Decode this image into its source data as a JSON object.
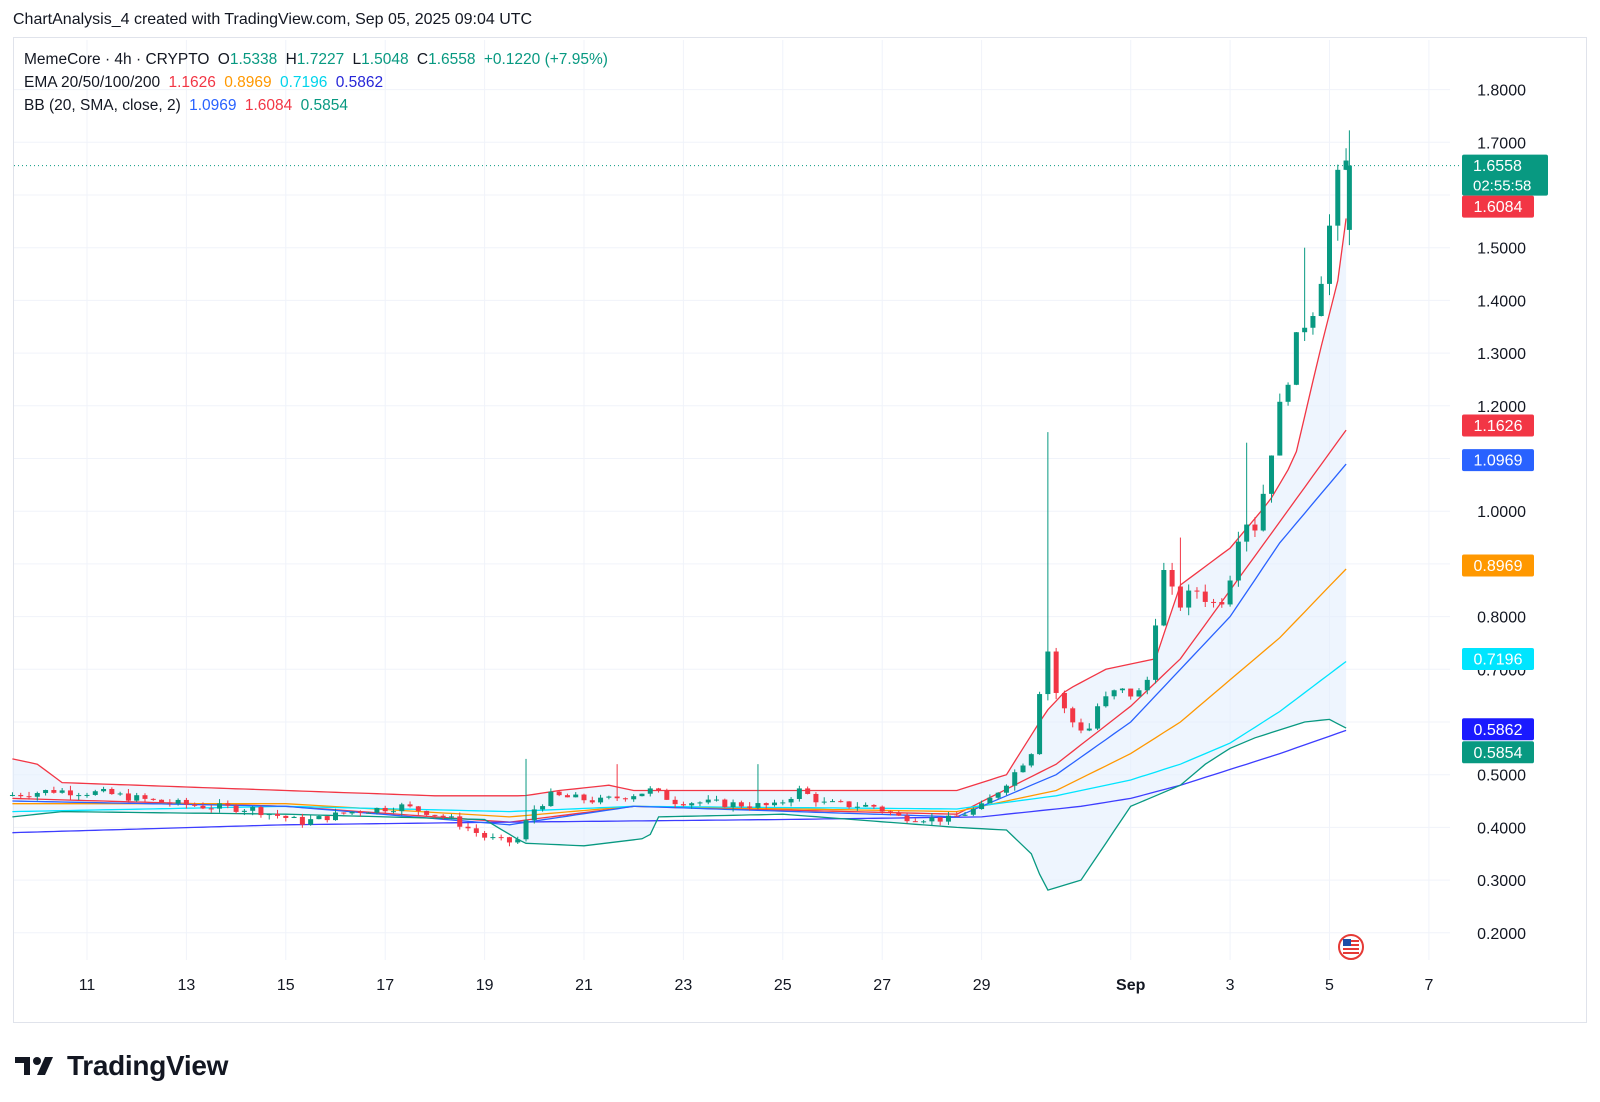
{
  "header": {
    "caption": "ChartAnalysis_4 created with TradingView.com, Sep 05, 2025 09:04 UTC"
  },
  "legend": {
    "symbol": "MemeCore · 4h · CRYPTO",
    "o_label": "O",
    "o_value": "1.5338",
    "h_label": "H",
    "h_value": "1.7227",
    "l_label": "L",
    "l_value": "1.5048",
    "c_label": "C",
    "c_value": "1.6558",
    "change": "+0.1220 (+7.95%)",
    "ema_label": "EMA 20/50/100/200",
    "ema_values": [
      "1.1626",
      "0.8969",
      "0.7196",
      "0.5862"
    ],
    "bb_label": "BB (20, SMA, close, 2)",
    "bb_values": [
      "1.0969",
      "1.6084",
      "0.5854"
    ]
  },
  "footer": {
    "brand": "TradingView"
  },
  "colors": {
    "up": "#089981",
    "down": "#f23645",
    "ema20": "#f23645",
    "ema50": "#ff9800",
    "ema100": "#00e5ff",
    "ema200": "#3d3dff",
    "bb_basis": "#2962ff",
    "bb_upper": "#f23645",
    "bb_lower": "#089981",
    "bb_fill": "#e3effd",
    "grid": "#f0f3fa"
  },
  "chart_data": {
    "type": "candlestick",
    "symbol": "MemeCore",
    "interval": "4h",
    "ylim": [
      0.15,
      1.85
    ],
    "y_ticks": [
      "0.2000",
      "0.3000",
      "0.4000",
      "0.5000",
      "0.7000",
      "0.8000",
      "1.0000",
      "1.2000",
      "1.3000",
      "1.4000",
      "1.5000",
      "1.7000",
      "1.8000"
    ],
    "x_ticks": [
      "11",
      "13",
      "15",
      "17",
      "19",
      "21",
      "23",
      "25",
      "27",
      "29",
      "Sep",
      "3",
      "5",
      "7"
    ],
    "x_tick_days": [
      11,
      13,
      15,
      17,
      19,
      21,
      23,
      25,
      27,
      29,
      32,
      34,
      36,
      38
    ],
    "x_range_days": [
      9.5,
      39.5
    ],
    "last_price": "1.6558",
    "countdown": "02:55:58",
    "price_labels": [
      {
        "text": "1.6084",
        "value": 1.6084,
        "color": "#f23645"
      },
      {
        "text": "1.1626",
        "value": 1.1626,
        "color": "#f23645"
      },
      {
        "text": "1.0969",
        "value": 1.0969,
        "color": "#2962ff"
      },
      {
        "text": "0.8969",
        "value": 0.8969,
        "color": "#ff9800"
      },
      {
        "text": "0.7196",
        "value": 0.7196,
        "color": "#00e5ff"
      },
      {
        "text": "0.5862",
        "value": 0.5862,
        "color": "#1a1aff"
      },
      {
        "text": "0.5854",
        "value": 0.5854,
        "color": "#089981"
      }
    ],
    "close_anchors": [
      [
        9.5,
        0.46
      ],
      [
        10.5,
        0.47
      ],
      [
        11.5,
        0.465
      ],
      [
        12.5,
        0.45
      ],
      [
        13.5,
        0.44
      ],
      [
        14.5,
        0.435
      ],
      [
        15.5,
        0.41
      ],
      [
        16.5,
        0.43
      ],
      [
        17.5,
        0.44
      ],
      [
        18.0,
        0.43
      ],
      [
        18.5,
        0.415
      ],
      [
        19.2,
        0.38
      ],
      [
        19.8,
        0.37
      ],
      [
        20.1,
        0.43
      ],
      [
        20.5,
        0.46
      ],
      [
        21.0,
        0.455
      ],
      [
        21.5,
        0.45
      ],
      [
        22.0,
        0.46
      ],
      [
        22.5,
        0.47
      ],
      [
        23.0,
        0.45
      ],
      [
        24.0,
        0.445
      ],
      [
        25.0,
        0.44
      ],
      [
        25.5,
        0.47
      ],
      [
        26.0,
        0.445
      ],
      [
        27.0,
        0.44
      ],
      [
        27.5,
        0.42
      ],
      [
        28.5,
        0.415
      ],
      [
        29.2,
        0.44
      ],
      [
        29.8,
        0.5
      ],
      [
        30.2,
        0.55
      ],
      [
        30.45,
        0.76
      ],
      [
        30.7,
        0.64
      ],
      [
        31.0,
        0.6
      ],
      [
        31.3,
        0.58
      ],
      [
        31.5,
        0.63
      ],
      [
        31.9,
        0.66
      ],
      [
        32.3,
        0.65
      ],
      [
        32.5,
        0.68
      ],
      [
        32.8,
        0.89
      ],
      [
        33.1,
        0.82
      ],
      [
        33.5,
        0.85
      ],
      [
        33.9,
        0.82
      ],
      [
        34.1,
        0.85
      ],
      [
        34.4,
        0.99
      ],
      [
        34.7,
        0.97
      ],
      [
        35.0,
        1.12
      ],
      [
        35.3,
        1.25
      ],
      [
        35.6,
        1.35
      ],
      [
        35.9,
        1.4
      ],
      [
        36.15,
        1.53
      ],
      [
        36.4,
        1.6558
      ]
    ],
    "spikes": [
      {
        "day": 30.35,
        "high": 1.15
      },
      {
        "day": 19.85,
        "high": 0.53
      },
      {
        "day": 21.6,
        "high": 0.52
      },
      {
        "day": 24.5,
        "high": 0.52
      },
      {
        "day": 32.95,
        "high": 0.95
      },
      {
        "day": 34.3,
        "high": 1.13
      },
      {
        "day": 35.45,
        "high": 1.5
      },
      {
        "day": 36.4,
        "high": 1.7227
      }
    ],
    "last_candle": {
      "day": 36.4,
      "open": 1.5338,
      "high": 1.7227,
      "low": 1.5048,
      "close": 1.6558
    },
    "ema": [
      {
        "name": "EMA 20",
        "value": 1.1626,
        "color": "#f23645",
        "points": [
          [
            9.5,
            0.455
          ],
          [
            15,
            0.44
          ],
          [
            19.5,
            0.41
          ],
          [
            22,
            0.44
          ],
          [
            28.5,
            0.425
          ],
          [
            30.5,
            0.52
          ],
          [
            32,
            0.63
          ],
          [
            33,
            0.72
          ],
          [
            34,
            0.85
          ],
          [
            35,
            0.98
          ],
          [
            36.4,
            1.1626
          ]
        ]
      },
      {
        "name": "EMA 50",
        "value": 0.8969,
        "color": "#ff9800",
        "points": [
          [
            9.5,
            0.445
          ],
          [
            15,
            0.445
          ],
          [
            19.5,
            0.42
          ],
          [
            22,
            0.44
          ],
          [
            28.5,
            0.43
          ],
          [
            30.5,
            0.47
          ],
          [
            32,
            0.54
          ],
          [
            33,
            0.6
          ],
          [
            34,
            0.68
          ],
          [
            35,
            0.76
          ],
          [
            36.4,
            0.8969
          ]
        ]
      },
      {
        "name": "EMA 100",
        "value": 0.7196,
        "color": "#00e5ff",
        "points": [
          [
            9.5,
            0.43
          ],
          [
            15,
            0.44
          ],
          [
            19.5,
            0.43
          ],
          [
            22,
            0.44
          ],
          [
            28.5,
            0.435
          ],
          [
            30.5,
            0.46
          ],
          [
            32,
            0.49
          ],
          [
            33,
            0.52
          ],
          [
            34,
            0.56
          ],
          [
            35,
            0.62
          ],
          [
            36.4,
            0.7196
          ]
        ]
      },
      {
        "name": "EMA 200",
        "value": 0.5862,
        "color": "#3d3dff",
        "points": [
          [
            9.5,
            0.39
          ],
          [
            15,
            0.405
          ],
          [
            19.5,
            0.41
          ],
          [
            25,
            0.415
          ],
          [
            29,
            0.42
          ],
          [
            31,
            0.44
          ],
          [
            32,
            0.455
          ],
          [
            33,
            0.48
          ],
          [
            34,
            0.51
          ],
          [
            35,
            0.54
          ],
          [
            36.4,
            0.5862
          ]
        ]
      }
    ],
    "bollinger": {
      "basis": {
        "name": "BB basis",
        "value": 1.0969,
        "points": [
          [
            9.5,
            0.45
          ],
          [
            15,
            0.44
          ],
          [
            19.5,
            0.405
          ],
          [
            22,
            0.44
          ],
          [
            28.5,
            0.42
          ],
          [
            30.5,
            0.5
          ],
          [
            32,
            0.6
          ],
          [
            33,
            0.7
          ],
          [
            34,
            0.8
          ],
          [
            35,
            0.94
          ],
          [
            36.4,
            1.0969
          ]
        ]
      },
      "upper": {
        "name": "BB upper",
        "value": 1.6084,
        "points": [
          [
            9.5,
            0.53
          ],
          [
            10,
            0.52
          ],
          [
            10.5,
            0.485
          ],
          [
            12,
            0.48
          ],
          [
            15,
            0.47
          ],
          [
            18,
            0.46
          ],
          [
            19.8,
            0.46
          ],
          [
            20.5,
            0.47
          ],
          [
            21.5,
            0.48
          ],
          [
            22,
            0.47
          ],
          [
            25,
            0.47
          ],
          [
            28.5,
            0.47
          ],
          [
            29.5,
            0.5
          ],
          [
            30.3,
            0.62
          ],
          [
            30.7,
            0.66
          ],
          [
            31.5,
            0.7
          ],
          [
            32.5,
            0.72
          ],
          [
            33,
            0.86
          ],
          [
            34,
            0.93
          ],
          [
            34.8,
            1.02
          ],
          [
            35.3,
            1.1
          ],
          [
            35.8,
            1.3
          ],
          [
            36.2,
            1.45
          ],
          [
            36.4,
            1.6084
          ]
        ]
      },
      "lower": {
        "name": "BB lower",
        "value": 0.5854,
        "points": [
          [
            9.5,
            0.42
          ],
          [
            10.5,
            0.43
          ],
          [
            15,
            0.425
          ],
          [
            19,
            0.415
          ],
          [
            19.8,
            0.37
          ],
          [
            21,
            0.365
          ],
          [
            22.3,
            0.38
          ],
          [
            22.5,
            0.42
          ],
          [
            25,
            0.425
          ],
          [
            28.5,
            0.4
          ],
          [
            29.5,
            0.395
          ],
          [
            30,
            0.35
          ],
          [
            30.3,
            0.28
          ],
          [
            31,
            0.3
          ],
          [
            32,
            0.44
          ],
          [
            32.5,
            0.46
          ],
          [
            33,
            0.48
          ],
          [
            33.5,
            0.52
          ],
          [
            34,
            0.55
          ],
          [
            34.5,
            0.57
          ],
          [
            35,
            0.585
          ],
          [
            35.5,
            0.6
          ],
          [
            36,
            0.605
          ],
          [
            36.3,
            0.59
          ],
          [
            36.4,
            0.5854
          ]
        ]
      }
    }
  }
}
